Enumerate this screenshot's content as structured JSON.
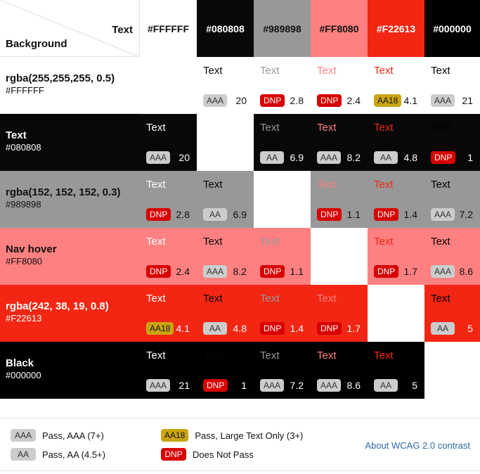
{
  "corner": {
    "text_label": "Text",
    "background_label": "Background"
  },
  "columns": [
    {
      "hex": "#FFFFFF",
      "bg": "#ffffff",
      "fg": "#111111"
    },
    {
      "hex": "#080808",
      "bg": "#080808",
      "fg": "#ffffff"
    },
    {
      "hex": "#989898",
      "bg": "#989898",
      "fg": "#111111"
    },
    {
      "hex": "#FF8080",
      "bg": "#ff8080",
      "fg": "#111111"
    },
    {
      "hex": "#F22613",
      "bg": "#f22613",
      "fg": "#ffffff"
    },
    {
      "hex": "#000000",
      "bg": "#000000",
      "fg": "#ffffff"
    }
  ],
  "rows": [
    {
      "name": "rgba(255,255,255, 0.5)",
      "hex": "#FFFFFF",
      "bg": "#ffffff",
      "fg": "#111111",
      "cells": [
        null,
        {
          "text": "Text",
          "color": "#080808",
          "badge": "AAA",
          "ratio": "20"
        },
        {
          "text": "Text",
          "color": "#989898",
          "badge": "DNP",
          "ratio": "2.8"
        },
        {
          "text": "Text",
          "color": "#ff8080",
          "badge": "DNP",
          "ratio": "2.4"
        },
        {
          "text": "Text",
          "color": "#f22613",
          "badge": "AA18",
          "ratio": "4.1"
        },
        {
          "text": "Text",
          "color": "#000000",
          "badge": "AAA",
          "ratio": "21"
        }
      ]
    },
    {
      "name": "Text",
      "hex": "#080808",
      "bg": "#080808",
      "fg": "#ffffff",
      "cells": [
        {
          "text": "Text",
          "color": "#ffffff",
          "badge": "AAA",
          "ratio": "20"
        },
        null,
        {
          "text": "Text",
          "color": "#989898",
          "badge": "AA",
          "ratio": "6.9"
        },
        {
          "text": "Text",
          "color": "#ff8080",
          "badge": "AAA",
          "ratio": "8.2"
        },
        {
          "text": "Text",
          "color": "#f22613",
          "badge": "AA",
          "ratio": "4.8"
        },
        {
          "text": "Text",
          "color": "#000000",
          "badge": "DNP",
          "ratio": "1"
        }
      ]
    },
    {
      "name": "rgba(152, 152, 152, 0.3)",
      "hex": "#989898",
      "bg": "#989898",
      "fg": "#111111",
      "cells": [
        {
          "text": "Text",
          "color": "#ffffff",
          "badge": "DNP",
          "ratio": "2.8"
        },
        {
          "text": "Text",
          "color": "#080808",
          "badge": "AA",
          "ratio": "6.9"
        },
        null,
        {
          "text": "Text",
          "color": "#ff8080",
          "badge": "DNP",
          "ratio": "1.1"
        },
        {
          "text": "Text",
          "color": "#f22613",
          "badge": "DNP",
          "ratio": "1.4"
        },
        {
          "text": "Text",
          "color": "#000000",
          "badge": "AAA",
          "ratio": "7.2"
        }
      ]
    },
    {
      "name": "Nav hover",
      "hex": "#FF8080",
      "bg": "#ff8080",
      "fg": "#111111",
      "cells": [
        {
          "text": "Text",
          "color": "#ffffff",
          "badge": "DNP",
          "ratio": "2.4"
        },
        {
          "text": "Text",
          "color": "#080808",
          "badge": "AAA",
          "ratio": "8.2"
        },
        {
          "text": "Text",
          "color": "#989898",
          "badge": "DNP",
          "ratio": "1.1"
        },
        null,
        {
          "text": "Text",
          "color": "#f22613",
          "badge": "DNP",
          "ratio": "1.7"
        },
        {
          "text": "Text",
          "color": "#000000",
          "badge": "AAA",
          "ratio": "8.6"
        }
      ]
    },
    {
      "name": "rgba(242, 38, 19, 0.8)",
      "hex": "#F22613",
      "bg": "#f22613",
      "fg": "#ffffff",
      "cells": [
        {
          "text": "Text",
          "color": "#ffffff",
          "badge": "AA18",
          "ratio": "4.1"
        },
        {
          "text": "Text",
          "color": "#080808",
          "badge": "AA",
          "ratio": "4.8"
        },
        {
          "text": "Text",
          "color": "#989898",
          "badge": "DNP",
          "ratio": "1.4"
        },
        {
          "text": "Text",
          "color": "#ff8080",
          "badge": "DNP",
          "ratio": "1.7"
        },
        null,
        {
          "text": "Text",
          "color": "#000000",
          "badge": "AA",
          "ratio": "5"
        }
      ]
    },
    {
      "name": "Black",
      "hex": "#000000",
      "bg": "#000000",
      "fg": "#ffffff",
      "cells": [
        {
          "text": "Text",
          "color": "#ffffff",
          "badge": "AAA",
          "ratio": "21"
        },
        {
          "text": "Text",
          "color": "#080808",
          "badge": "DNP",
          "ratio": "1"
        },
        {
          "text": "Text",
          "color": "#989898",
          "badge": "AAA",
          "ratio": "7.2"
        },
        {
          "text": "Text",
          "color": "#ff8080",
          "badge": "AAA",
          "ratio": "8.6"
        },
        {
          "text": "Text",
          "color": "#f22613",
          "badge": "AA",
          "ratio": "5"
        },
        null
      ]
    }
  ],
  "legend": {
    "aaa": {
      "badge": "AAA",
      "label": "Pass, AAA (7+)"
    },
    "aa": {
      "badge": "AA",
      "label": "Pass, AA (4.5+)"
    },
    "aa18": {
      "badge": "AA18",
      "label": "Pass, Large Text Only (3+)"
    },
    "dnp": {
      "badge": "DNP",
      "label": "Does Not Pass"
    }
  },
  "about_link": "About WCAG 2.0 contrast"
}
